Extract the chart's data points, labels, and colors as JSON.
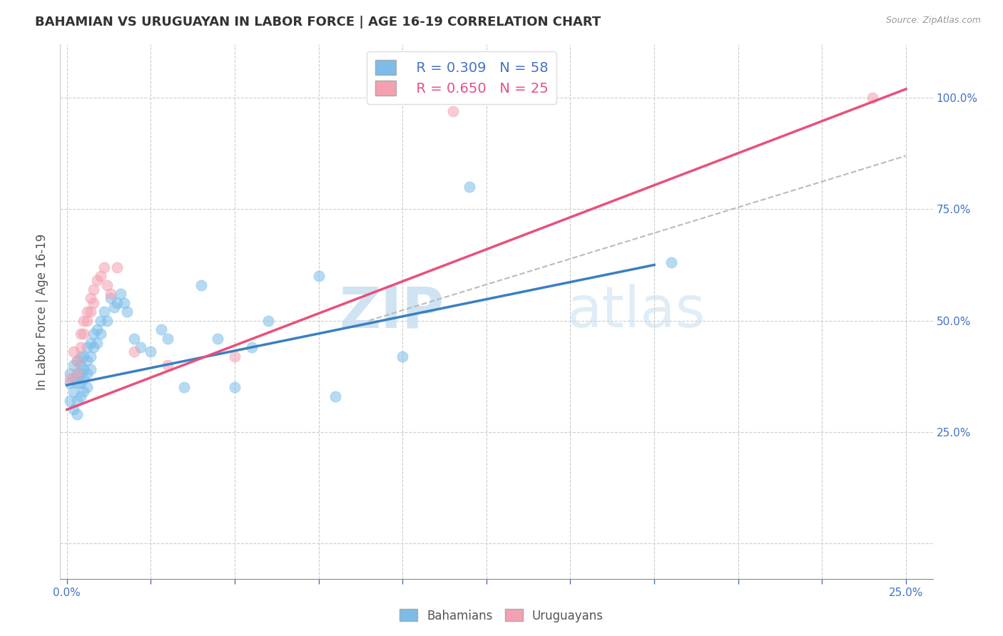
{
  "title": "BAHAMIAN VS URUGUAYAN IN LABOR FORCE | AGE 16-19 CORRELATION CHART",
  "source": "Source: ZipAtlas.com",
  "ylabel": "In Labor Force | Age 16-19",
  "xlim": [
    -0.002,
    0.258
  ],
  "ylim": [
    -0.08,
    1.12
  ],
  "yticks": [
    0.0,
    0.25,
    0.5,
    0.75,
    1.0
  ],
  "ytick_labels_right": [
    "",
    "25.0%",
    "50.0%",
    "75.0%",
    "100.0%"
  ],
  "xtick_positions": [
    0.0,
    0.025,
    0.05,
    0.075,
    0.1,
    0.125,
    0.15,
    0.175,
    0.2,
    0.225,
    0.25
  ],
  "xtick_labels": [
    "0.0%",
    "",
    "",
    "",
    "",
    "",
    "",
    "",
    "",
    "",
    "25.0%"
  ],
  "bahamian_color": "#7bbde8",
  "uruguayan_color": "#f4a0b0",
  "trend_blue": "#3a7fc1",
  "trend_pink": "#e8507a",
  "trend_gray": "#bbbbbb",
  "legend_blue_r": "R = 0.309",
  "legend_blue_n": "N = 58",
  "legend_pink_r": "R = 0.650",
  "legend_pink_n": "N = 25",
  "blue_trend_x0": 0.0,
  "blue_trend_y0": 0.355,
  "blue_trend_x1": 0.175,
  "blue_trend_y1": 0.625,
  "pink_trend_x0": 0.0,
  "pink_trend_y0": 0.3,
  "pink_trend_x1": 0.25,
  "pink_trend_y1": 1.02,
  "gray_trend_x0": 0.09,
  "gray_trend_y0": 0.5,
  "gray_trend_x1": 0.25,
  "gray_trend_y1": 0.87,
  "bahamian_x": [
    0.001,
    0.001,
    0.001,
    0.002,
    0.002,
    0.002,
    0.002,
    0.003,
    0.003,
    0.003,
    0.003,
    0.003,
    0.004,
    0.004,
    0.004,
    0.004,
    0.004,
    0.005,
    0.005,
    0.005,
    0.005,
    0.006,
    0.006,
    0.006,
    0.006,
    0.007,
    0.007,
    0.007,
    0.008,
    0.008,
    0.009,
    0.009,
    0.01,
    0.01,
    0.011,
    0.012,
    0.013,
    0.014,
    0.015,
    0.016,
    0.017,
    0.018,
    0.02,
    0.022,
    0.025,
    0.028,
    0.03,
    0.035,
    0.04,
    0.045,
    0.05,
    0.055,
    0.06,
    0.075,
    0.08,
    0.1,
    0.12,
    0.18
  ],
  "bahamian_y": [
    0.38,
    0.36,
    0.32,
    0.4,
    0.37,
    0.34,
    0.3,
    0.41,
    0.38,
    0.36,
    0.32,
    0.29,
    0.42,
    0.4,
    0.38,
    0.36,
    0.33,
    0.42,
    0.39,
    0.37,
    0.34,
    0.44,
    0.41,
    0.38,
    0.35,
    0.45,
    0.42,
    0.39,
    0.47,
    0.44,
    0.48,
    0.45,
    0.5,
    0.47,
    0.52,
    0.5,
    0.55,
    0.53,
    0.54,
    0.56,
    0.54,
    0.52,
    0.46,
    0.44,
    0.43,
    0.48,
    0.46,
    0.35,
    0.58,
    0.46,
    0.35,
    0.44,
    0.5,
    0.6,
    0.33,
    0.42,
    0.8,
    0.63
  ],
  "uruguayan_x": [
    0.001,
    0.002,
    0.003,
    0.003,
    0.004,
    0.004,
    0.005,
    0.005,
    0.006,
    0.006,
    0.007,
    0.007,
    0.008,
    0.008,
    0.009,
    0.01,
    0.011,
    0.012,
    0.013,
    0.015,
    0.02,
    0.03,
    0.05,
    0.115,
    0.24
  ],
  "uruguayan_y": [
    0.37,
    0.43,
    0.41,
    0.38,
    0.47,
    0.44,
    0.5,
    0.47,
    0.52,
    0.5,
    0.55,
    0.52,
    0.57,
    0.54,
    0.59,
    0.6,
    0.62,
    0.58,
    0.56,
    0.62,
    0.43,
    0.4,
    0.42,
    0.97,
    1.0
  ]
}
